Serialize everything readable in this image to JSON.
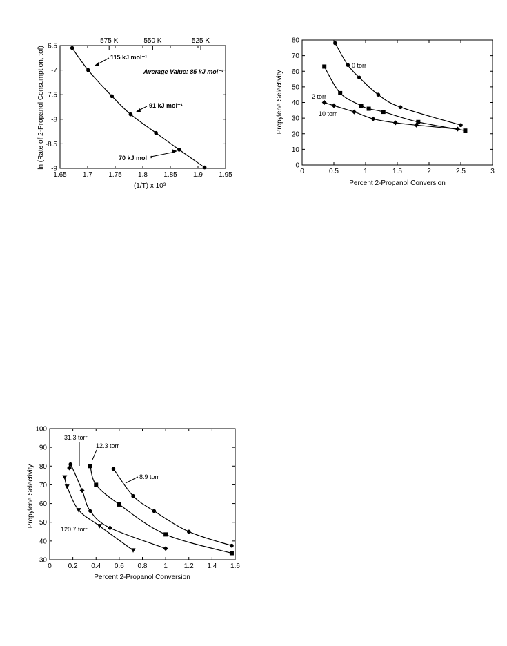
{
  "chart_data": [
    {
      "type": "line",
      "xlabel": "(1/T) x 10³",
      "ylabel": "ln (Rate of 2-Propanol Consumption, tof)",
      "xlim": [
        1.65,
        1.95
      ],
      "ylim": [
        -9,
        -6.5
      ],
      "x_ticks": [
        "1.65",
        "1.7",
        "1.75",
        "1.8",
        "1.85",
        "1.9",
        "1.95"
      ],
      "y_ticks": [
        "-6.5",
        "-7",
        "-7.5",
        "-8",
        "-8.5",
        "-9"
      ],
      "top_axis": {
        "ticks": [
          {
            "label": "575 K",
            "x": 1.739
          },
          {
            "label": "550 K",
            "x": 1.818
          },
          {
            "label": "525 K",
            "x": 1.905
          }
        ]
      },
      "series": [
        {
          "marker": "circle",
          "x": [
            1.672,
            1.701,
            1.744,
            1.778,
            1.824,
            1.866,
            1.912
          ],
          "y": [
            -6.55,
            -7.0,
            -7.53,
            -7.9,
            -8.28,
            -8.62,
            -8.98
          ]
        }
      ],
      "annotations": [
        {
          "text": "115 kJ mol⁻¹",
          "style": "bold"
        },
        {
          "text": "91 kJ mol⁻¹",
          "style": "bold"
        },
        {
          "text": "70 kJ mol⁻¹",
          "style": "bold"
        },
        {
          "text": "Average Value: 85 kJ mol⁻¹",
          "style": "bold-italic"
        }
      ]
    },
    {
      "type": "line",
      "xlabel": "Percent 2-Propanol Conversion",
      "ylabel": "Propylene Selectivity",
      "xlim": [
        0,
        3
      ],
      "ylim": [
        0,
        80
      ],
      "x_ticks": [
        "0",
        "0.5",
        "1",
        "1.5",
        "2",
        "2.5",
        "3"
      ],
      "y_ticks": [
        "0",
        "10",
        "20",
        "30",
        "40",
        "50",
        "60",
        "70",
        "80"
      ],
      "series": [
        {
          "name": "0 torr",
          "marker": "circle",
          "x": [
            0.52,
            0.72,
            0.9,
            1.2,
            1.55,
            2.5
          ],
          "y": [
            78,
            64,
            56,
            45,
            37,
            25.5
          ]
        },
        {
          "name": "2 torr",
          "marker": "square",
          "x": [
            0.35,
            0.6,
            0.93,
            1.05,
            1.28,
            1.83,
            2.57
          ],
          "y": [
            63,
            46,
            38,
            36,
            34,
            27.5,
            22
          ]
        },
        {
          "name": "10 torr",
          "marker": "diamond",
          "x": [
            0.35,
            0.5,
            0.82,
            1.12,
            1.47,
            1.8,
            2.45
          ],
          "y": [
            40,
            38,
            34,
            29.5,
            27,
            25.5,
            23
          ]
        }
      ]
    },
    {
      "type": "line",
      "xlabel": "Percent 2-Propanol Conversion",
      "ylabel": "Propylene Selectivity",
      "xlim": [
        0,
        1.6
      ],
      "ylim": [
        30,
        100
      ],
      "x_ticks": [
        "0",
        "0.2",
        "0.4",
        "0.6",
        "0.8",
        "1",
        "1.2",
        "1.4",
        "1.6"
      ],
      "y_ticks": [
        "30",
        "40",
        "50",
        "60",
        "70",
        "80",
        "90",
        "100"
      ],
      "series": [
        {
          "name": "8.9 torr",
          "marker": "circle",
          "x": [
            0.55,
            0.72,
            0.9,
            1.2,
            1.57
          ],
          "y": [
            78.5,
            64,
            56,
            45,
            37.5
          ]
        },
        {
          "name": "12.3 torr",
          "marker": "square",
          "x": [
            0.35,
            0.4,
            0.6,
            1.0,
            1.57
          ],
          "y": [
            80,
            70,
            59.5,
            43.5,
            33.5
          ]
        },
        {
          "name": "31.3 torr",
          "marker": "diamond",
          "x": [
            0.17,
            0.18,
            0.28,
            0.35,
            0.52,
            1.0
          ],
          "y": [
            79,
            81,
            67,
            56,
            47,
            36
          ]
        },
        {
          "name": "120.7 torr",
          "marker": "triangle-down",
          "x": [
            0.13,
            0.15,
            0.25,
            0.43,
            0.72
          ],
          "y": [
            74,
            69,
            56.5,
            48,
            35
          ]
        }
      ]
    }
  ]
}
